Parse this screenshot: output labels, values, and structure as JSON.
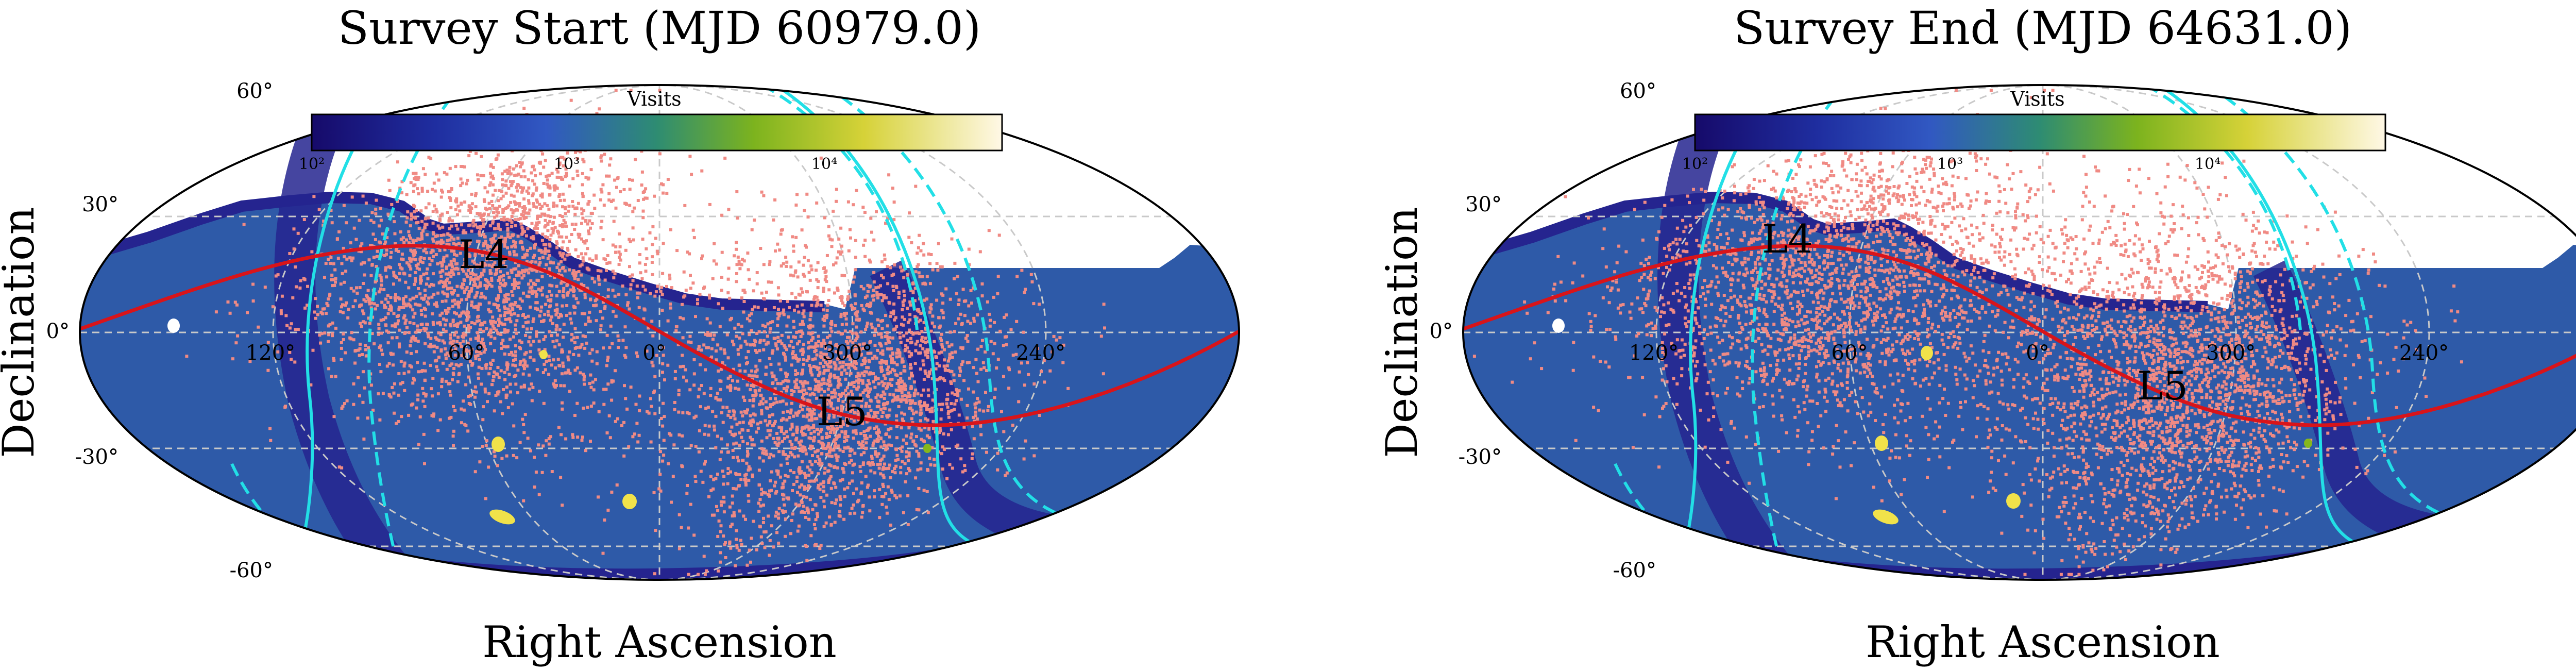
{
  "figure": {
    "background": "#ffffff",
    "colormap": [
      "#1a0a6e",
      "#2438a8",
      "#3f63c4",
      "#2f8a6a",
      "#86b71c",
      "#e6d83a",
      "#fff7dd"
    ],
    "colors": {
      "sky_fill": "#2e5aa8",
      "sky_outer": "#25248f",
      "ecliptic": "#d8141a",
      "galactic_plane": "#22dfe6",
      "points": "#f08a84",
      "hotspot": "#f1e24a",
      "grid": "#c9c9c9"
    }
  },
  "chart_data": [
    {
      "type": "scatter",
      "projection": "mollweide",
      "title": "Survey Start (MJD 60979.0)",
      "xlabel": "Right Ascension",
      "ylabel": "Declination",
      "ra_ticks": [
        "120°",
        "60°",
        "0°",
        "300°",
        "240°"
      ],
      "dec_ticks": [
        "60°",
        "30°",
        "0°",
        "-30°",
        "-60°"
      ],
      "colorbar": {
        "label": "Visits",
        "scale": "log",
        "ticks": [
          "10²",
          "10³",
          "10⁴"
        ],
        "range": [
          100,
          60000
        ]
      },
      "annotations": [
        "L4",
        "L5"
      ],
      "clusters": [
        {
          "name": "L4",
          "ra_center_deg": 55,
          "dec_center_deg": 15,
          "ra_spread_deg": 28,
          "dec_spread_deg": 22,
          "count": 2600
        },
        {
          "name": "L5",
          "ra_center_deg": 300,
          "dec_center_deg": -18,
          "ra_spread_deg": 26,
          "dec_spread_deg": 22,
          "count": 2600
        }
      ],
      "observed_region": {
        "dec_max_deg": 23
      }
    },
    {
      "type": "scatter",
      "projection": "mollweide",
      "title": "Survey End (MJD 64631.0)",
      "xlabel": "Right Ascension",
      "ylabel": "Declination",
      "ra_ticks": [
        "120°",
        "60°",
        "0°",
        "300°",
        "240°"
      ],
      "dec_ticks": [
        "60°",
        "30°",
        "0°",
        "-30°",
        "-60°"
      ],
      "colorbar": {
        "label": "Visits",
        "scale": "log",
        "ticks": [
          "10²",
          "10³",
          "10⁴"
        ],
        "range": [
          100,
          60000
        ]
      },
      "annotations": [
        "L4",
        "L5"
      ],
      "clusters": [
        {
          "name": "L4",
          "ra_center_deg": 65,
          "dec_center_deg": 15,
          "ra_spread_deg": 34,
          "dec_spread_deg": 22,
          "count": 2600
        },
        {
          "name": "L5",
          "ra_center_deg": 315,
          "dec_center_deg": -15,
          "ra_spread_deg": 28,
          "dec_spread_deg": 24,
          "count": 2600
        }
      ],
      "observed_region": {
        "dec_max_deg": 23
      }
    }
  ]
}
